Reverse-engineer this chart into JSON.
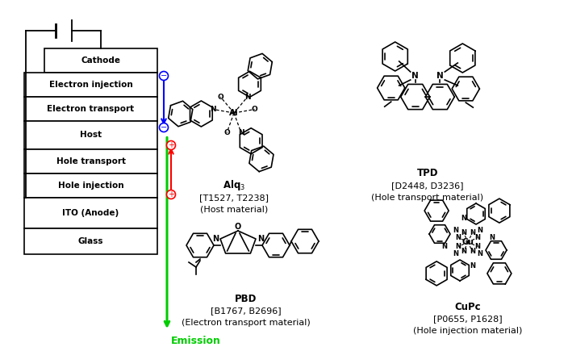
{
  "bg_color": "#ffffff",
  "layers": [
    "Cathode",
    "Electron injection",
    "Electron transport",
    "Host",
    "Hole transport",
    "Hole injection",
    "ITO (Anode)",
    "Glass"
  ],
  "blue_color": "#0000ff",
  "red_color": "#ff0000",
  "green_color": "#00cc00",
  "compounds": [
    {
      "name": "Alq$_3$",
      "code": "[T1527, T2238]",
      "role": "(Host material)"
    },
    {
      "name": "TPD",
      "code": "[D2448, D3236]",
      "role": "(Hole transport material)"
    },
    {
      "name": "PBD",
      "code": "[B1767, B2696]",
      "role": "(Electron transport material)"
    },
    {
      "name": "CuPc",
      "code": "[P0655, P1628]",
      "role": "(Hole injection material)"
    }
  ]
}
